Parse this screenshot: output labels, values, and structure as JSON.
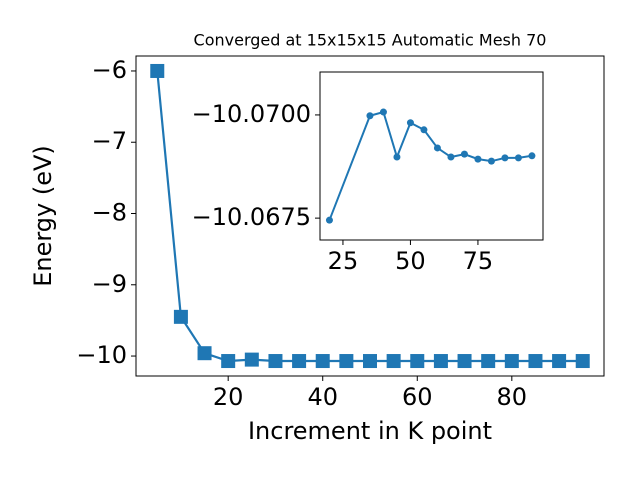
{
  "chart_data": [
    {
      "type": "line",
      "title": "Converged at 15x15x15 Automatic Mesh 70",
      "x_label": "Increment in K point",
      "y_label": "Energy (eV)",
      "x": [
        5,
        10,
        15,
        20,
        25,
        30,
        35,
        40,
        45,
        50,
        55,
        60,
        65,
        70,
        75,
        80,
        85,
        90,
        95
      ],
      "values": [
        -6,
        -9.45,
        -9.96,
        -10.07,
        -10.05,
        -10.07,
        -10.07,
        -10.07,
        -10.07,
        -10.07,
        -10.07,
        -10.07,
        -10.07,
        -10.07,
        -10.07,
        -10.07,
        -10.07,
        -10.07,
        -10.07
      ],
      "color": "#1f77b4",
      "marker": "square",
      "xlim": [
        0.5,
        99.5
      ],
      "xticks": [
        20,
        40,
        60,
        80
      ],
      "ylim": [
        -10.28,
        -5.79
      ],
      "yticks": [
        {
          "value": -10,
          "label": "−10"
        },
        {
          "value": -9,
          "label": "−9"
        },
        {
          "value": -8,
          "label": "−8"
        },
        {
          "value": -7,
          "label": "−7"
        },
        {
          "value": -6,
          "label": "−6"
        }
      ]
    },
    {
      "type": "line",
      "x": [
        20,
        35,
        40,
        45,
        50,
        55,
        60,
        65,
        70,
        75,
        80,
        85,
        90,
        95
      ],
      "values": [
        -10.06745,
        -10.06998,
        -10.07007,
        -10.06898,
        -10.06981,
        -10.06964,
        -10.0692,
        -10.06898,
        -10.06905,
        -10.06893,
        -10.06888,
        -10.06896,
        -10.06896,
        -10.06901
      ],
      "color": "#1f77b4",
      "marker": "circle",
      "xlim": [
        16.5,
        99.1
      ],
      "xticks": [
        25,
        50,
        75
      ],
      "ylim": [
        -10.06697,
        -10.07104
      ],
      "yticks": [
        {
          "value": -10.0675,
          "label": "−10.0675"
        },
        {
          "value": -10.07,
          "label": "−10.0700"
        }
      ]
    }
  ]
}
